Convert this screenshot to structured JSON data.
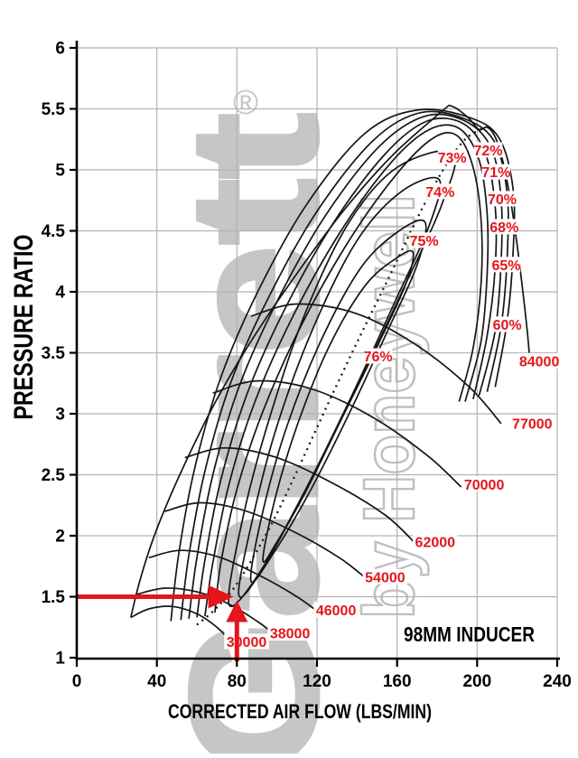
{
  "chart_data": {
    "type": "line",
    "variant": "turbocharger-compressor-map",
    "title": "98MM INDUCER",
    "xlabel": "CORRECTED AIR FLOW (LBS/MIN)",
    "ylabel": "PRESSURE RATIO",
    "xlim": [
      0,
      240
    ],
    "ylim": [
      1,
      6
    ],
    "xticks": [
      0,
      40,
      80,
      120,
      160,
      200,
      240
    ],
    "yticks": [
      1,
      1.5,
      2,
      2.5,
      3,
      3.5,
      4,
      4.5,
      5,
      5.5,
      6
    ],
    "grid": true,
    "legend_position": "none",
    "colors": {
      "map_line": "#151515",
      "grid": "#b3b3b3",
      "axis": "#000000",
      "red": "#e4151b",
      "watermark": "#c6c6c6",
      "watermark_outline": "#bfbfbf"
    },
    "watermark": {
      "brand": "Garrett",
      "registered": "®",
      "sub_brand": "by Honeywell"
    },
    "surge_line": [
      [
        27,
        1.33
      ],
      [
        31,
        1.6
      ],
      [
        37,
        1.92
      ],
      [
        45,
        2.26
      ],
      [
        56,
        2.66
      ],
      [
        70,
        3.12
      ],
      [
        88,
        3.62
      ],
      [
        110,
        4.15
      ],
      [
        134,
        4.68
      ],
      [
        159,
        5.14
      ],
      [
        186,
        5.53
      ]
    ],
    "speed_lines": [
      {
        "rpm": "30000",
        "label_at": [
          84.8,
          1.13
        ],
        "points": [
          [
            27,
            1.33
          ],
          [
            36,
            1.4
          ],
          [
            48,
            1.42
          ],
          [
            60,
            1.36
          ],
          [
            70,
            1.25
          ],
          [
            76,
            1.15
          ]
        ]
      },
      {
        "rpm": "38000",
        "label_at": [
          106.5,
          1.2
        ],
        "points": [
          [
            30,
            1.52
          ],
          [
            44,
            1.57
          ],
          [
            60,
            1.54
          ],
          [
            76,
            1.44
          ],
          [
            90,
            1.3
          ],
          [
            99,
            1.19
          ]
        ]
      },
      {
        "rpm": "46000",
        "label_at": [
          129.5,
          1.39
        ],
        "points": [
          [
            36,
            1.82
          ],
          [
            52,
            1.88
          ],
          [
            72,
            1.82
          ],
          [
            93,
            1.66
          ],
          [
            110,
            1.5
          ],
          [
            121,
            1.37
          ]
        ]
      },
      {
        "rpm": "54000",
        "label_at": [
          154,
          1.66
        ],
        "points": [
          [
            44,
            2.2
          ],
          [
            62,
            2.27
          ],
          [
            85,
            2.2
          ],
          [
            110,
            2.02
          ],
          [
            132,
            1.81
          ],
          [
            146,
            1.63
          ]
        ]
      },
      {
        "rpm": "62000",
        "label_at": [
          179,
          1.95
        ],
        "points": [
          [
            54,
            2.64
          ],
          [
            74,
            2.72
          ],
          [
            100,
            2.64
          ],
          [
            128,
            2.43
          ],
          [
            154,
            2.17
          ],
          [
            169,
            1.94
          ]
        ]
      },
      {
        "rpm": "70000",
        "label_at": [
          203.5,
          2.42
        ],
        "points": [
          [
            68,
            3.17
          ],
          [
            90,
            3.27
          ],
          [
            118,
            3.2
          ],
          [
            148,
            2.97
          ],
          [
            175,
            2.66
          ],
          [
            192,
            2.4
          ]
        ]
      },
      {
        "rpm": "77000",
        "label_at": [
          227.5,
          2.92
        ],
        "points": [
          [
            87,
            3.8
          ],
          [
            110,
            3.9
          ],
          [
            140,
            3.82
          ],
          [
            170,
            3.56
          ],
          [
            196,
            3.22
          ],
          [
            212,
            2.92
          ]
        ]
      },
      {
        "rpm": "84000",
        "label_at": [
          231,
          3.43
        ],
        "points": [
          [
            186,
            5.53
          ],
          [
            190,
            5.5
          ],
          [
            196,
            5.42
          ],
          [
            201,
            5.33
          ],
          [
            205,
            5.35
          ],
          [
            209,
            5.27
          ],
          [
            213,
            5.06
          ],
          [
            217,
            4.72
          ],
          [
            220,
            4.38
          ],
          [
            223,
            3.98
          ],
          [
            225,
            3.68
          ],
          [
            226,
            3.5
          ]
        ]
      }
    ],
    "efficiency_contours": [
      {
        "label": "76%",
        "label_at": [
          150.5,
          3.47
        ],
        "closed": true,
        "points": [
          [
            93,
            1.8
          ],
          [
            99,
            2.3
          ],
          [
            110,
            2.9
          ],
          [
            126,
            3.55
          ],
          [
            144,
            4.05
          ],
          [
            160,
            4.28
          ],
          [
            168,
            4.32
          ],
          [
            164,
            4.05
          ],
          [
            150,
            3.55
          ],
          [
            132,
            2.95
          ],
          [
            114,
            2.35
          ],
          [
            100,
            1.95
          ]
        ]
      },
      {
        "label": "75%",
        "label_at": [
          173.5,
          4.42
        ],
        "closed": true,
        "points": [
          [
            87,
            1.63
          ],
          [
            93,
            2.2
          ],
          [
            105,
            2.9
          ],
          [
            122,
            3.6
          ],
          [
            142,
            4.2
          ],
          [
            161,
            4.5
          ],
          [
            174,
            4.57
          ],
          [
            170,
            4.22
          ],
          [
            155,
            3.67
          ],
          [
            136,
            3.0
          ],
          [
            116,
            2.35
          ],
          [
            98,
            1.85
          ]
        ]
      },
      {
        "label": "74%",
        "label_at": [
          181.5,
          4.82
        ],
        "closed": true,
        "points": [
          [
            81,
            1.51
          ],
          [
            88,
            2.15
          ],
          [
            100,
            2.9
          ],
          [
            118,
            3.7
          ],
          [
            140,
            4.42
          ],
          [
            162,
            4.82
          ],
          [
            181,
            4.92
          ],
          [
            176,
            4.54
          ],
          [
            159,
            3.92
          ],
          [
            138,
            3.17
          ],
          [
            115,
            2.4
          ],
          [
            94,
            1.76
          ]
        ]
      },
      {
        "label": "73%",
        "label_at": [
          187.5,
          5.1
        ],
        "closed": true,
        "points": [
          [
            76,
            1.44
          ],
          [
            83,
            2.15
          ],
          [
            96,
            2.95
          ],
          [
            114,
            3.82
          ],
          [
            136,
            4.57
          ],
          [
            160,
            5.02
          ],
          [
            188,
            5.14
          ],
          [
            182,
            4.7
          ],
          [
            163,
            4.02
          ],
          [
            140,
            3.22
          ],
          [
            115,
            2.4
          ],
          [
            91,
            1.69
          ]
        ]
      },
      {
        "label": "72%",
        "label_at": [
          205.5,
          5.16
        ],
        "closed": false,
        "points": [
          [
            69,
            1.37
          ],
          [
            72,
            1.78
          ],
          [
            80,
            2.38
          ],
          [
            93,
            3.02
          ],
          [
            112,
            3.72
          ],
          [
            136,
            4.42
          ],
          [
            160,
            4.97
          ],
          [
            178,
            5.26
          ],
          [
            190,
            5.28
          ],
          [
            198,
            5.02
          ],
          [
            202,
            4.58
          ],
          [
            202,
            4.08
          ],
          [
            198,
            3.54
          ],
          [
            191,
            3.1
          ]
        ]
      },
      {
        "label": "71%",
        "label_at": [
          209.5,
          4.98
        ],
        "closed": false,
        "points": [
          [
            64,
            1.34
          ],
          [
            68,
            1.78
          ],
          [
            76,
            2.42
          ],
          [
            89,
            3.1
          ],
          [
            108,
            3.8
          ],
          [
            132,
            4.5
          ],
          [
            157,
            5.06
          ],
          [
            176,
            5.33
          ],
          [
            191,
            5.34
          ],
          [
            201,
            5.08
          ],
          [
            205,
            4.64
          ],
          [
            205,
            4.15
          ],
          [
            202,
            3.6
          ],
          [
            194,
            3.1
          ]
        ]
      },
      {
        "label": "70%",
        "label_at": [
          212.5,
          4.76
        ],
        "closed": false,
        "points": [
          [
            60,
            1.33
          ],
          [
            64,
            1.8
          ],
          [
            72,
            2.46
          ],
          [
            85,
            3.16
          ],
          [
            104,
            3.86
          ],
          [
            128,
            4.56
          ],
          [
            154,
            5.13
          ],
          [
            175,
            5.4
          ],
          [
            193,
            5.38
          ],
          [
            204,
            5.14
          ],
          [
            209,
            4.7
          ],
          [
            209,
            4.2
          ],
          [
            205,
            3.64
          ],
          [
            198,
            3.12
          ]
        ]
      },
      {
        "label": "68%",
        "label_at": [
          213.5,
          4.53
        ],
        "closed": false,
        "points": [
          [
            56,
            1.32
          ],
          [
            60,
            1.82
          ],
          [
            68,
            2.5
          ],
          [
            81,
            3.22
          ],
          [
            100,
            3.92
          ],
          [
            124,
            4.62
          ],
          [
            151,
            5.19
          ],
          [
            174,
            5.44
          ],
          [
            194,
            5.4
          ],
          [
            207,
            5.18
          ],
          [
            212,
            4.76
          ],
          [
            212,
            4.25
          ],
          [
            209,
            3.68
          ],
          [
            201,
            3.15
          ]
        ]
      },
      {
        "label": "65%",
        "label_at": [
          214.5,
          4.22
        ],
        "closed": false,
        "points": [
          [
            52,
            1.31
          ],
          [
            56,
            1.84
          ],
          [
            64,
            2.53
          ],
          [
            77,
            3.26
          ],
          [
            96,
            3.96
          ],
          [
            120,
            4.66
          ],
          [
            148,
            5.24
          ],
          [
            172,
            5.47
          ],
          [
            195,
            5.41
          ],
          [
            209,
            5.22
          ],
          [
            215,
            4.8
          ],
          [
            215,
            4.29
          ],
          [
            212,
            3.72
          ],
          [
            205,
            3.18
          ]
        ]
      },
      {
        "label": "60%",
        "label_at": [
          215,
          3.73
        ],
        "closed": false,
        "points": [
          [
            47,
            1.3
          ],
          [
            51,
            1.86
          ],
          [
            59,
            2.56
          ],
          [
            72,
            3.3
          ],
          [
            91,
            4.02
          ],
          [
            115,
            4.72
          ],
          [
            144,
            5.3
          ],
          [
            170,
            5.49
          ],
          [
            196,
            5.43
          ],
          [
            211,
            5.26
          ],
          [
            218,
            4.84
          ],
          [
            218,
            4.33
          ],
          [
            215,
            3.76
          ],
          [
            209,
            3.22
          ]
        ]
      }
    ],
    "peak_efficiency_dashed": [
      [
        60,
        1.27
      ],
      [
        68,
        1.38
      ],
      [
        78,
        1.56
      ],
      [
        88,
        1.82
      ],
      [
        99,
        2.15
      ],
      [
        112,
        2.6
      ],
      [
        126,
        3.1
      ],
      [
        141,
        3.62
      ],
      [
        156,
        4.12
      ],
      [
        170,
        4.6
      ],
      [
        183,
        5.0
      ],
      [
        194,
        5.25
      ],
      [
        204,
        5.35
      ]
    ],
    "annotation": {
      "text": "98MM INDUCER",
      "at": [
        196,
        1.185
      ]
    },
    "marker": {
      "flow": 80,
      "pressure_ratio": 1.5,
      "h_from_flow": 0,
      "h_to_flow": 78.3,
      "h_at_pr": 1.5,
      "v_at_flow": 80,
      "v_from_pr": 0.97,
      "v_to_pr": 1.47
    }
  }
}
